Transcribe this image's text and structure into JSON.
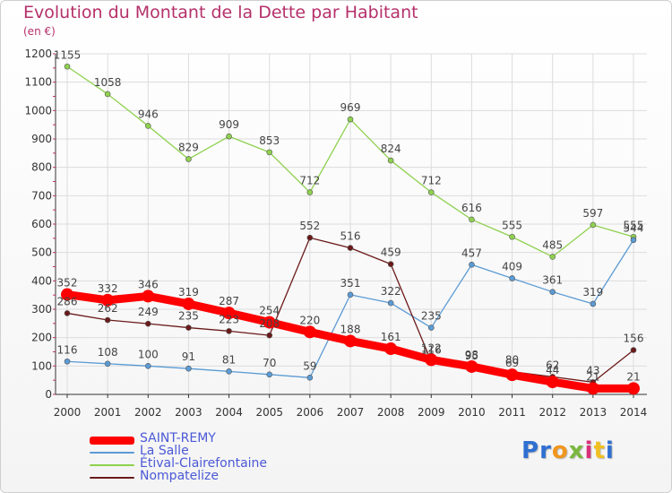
{
  "title": "Evolution du Montant de la Dette par Habitant",
  "subtitle": "(en €)",
  "logo_text": "Proxiti",
  "chart_data": {
    "type": "line",
    "title": "Evolution du Montant de la Dette par Habitant",
    "ylabel": "(en €)",
    "xlabel": "",
    "x": [
      2000,
      2001,
      2002,
      2003,
      2004,
      2005,
      2006,
      2007,
      2008,
      2009,
      2010,
      2011,
      2012,
      2013,
      2014
    ],
    "ylim": [
      0,
      1200
    ],
    "yticks": [
      0,
      100,
      200,
      300,
      400,
      500,
      600,
      700,
      800,
      900,
      1000,
      1100,
      1200
    ],
    "grid": true,
    "legend_position": "bottom-left",
    "series": [
      {
        "name": "SAINT-REMY",
        "color": "#ff0000",
        "values": [
          352,
          332,
          346,
          319,
          287,
          254,
          220,
          188,
          161,
          122,
          98,
          69,
          44,
          21,
          21
        ]
      },
      {
        "name": "La Salle",
        "color": "#5b9bd5",
        "values": [
          116,
          108,
          100,
          91,
          81,
          70,
          59,
          351,
          322,
          235,
          457,
          409,
          361,
          319,
          544
        ]
      },
      {
        "name": "Étival-Clairefontaine",
        "color": "#8fd14f",
        "values": [
          1155,
          1058,
          946,
          829,
          909,
          853,
          712,
          969,
          824,
          712,
          616,
          555,
          485,
          597,
          555
        ]
      },
      {
        "name": "Nompatelize",
        "color": "#6b1a1a",
        "values": [
          286,
          262,
          249,
          235,
          223,
          208,
          552,
          516,
          459,
          116,
          95,
          80,
          62,
          43,
          156
        ]
      }
    ]
  }
}
